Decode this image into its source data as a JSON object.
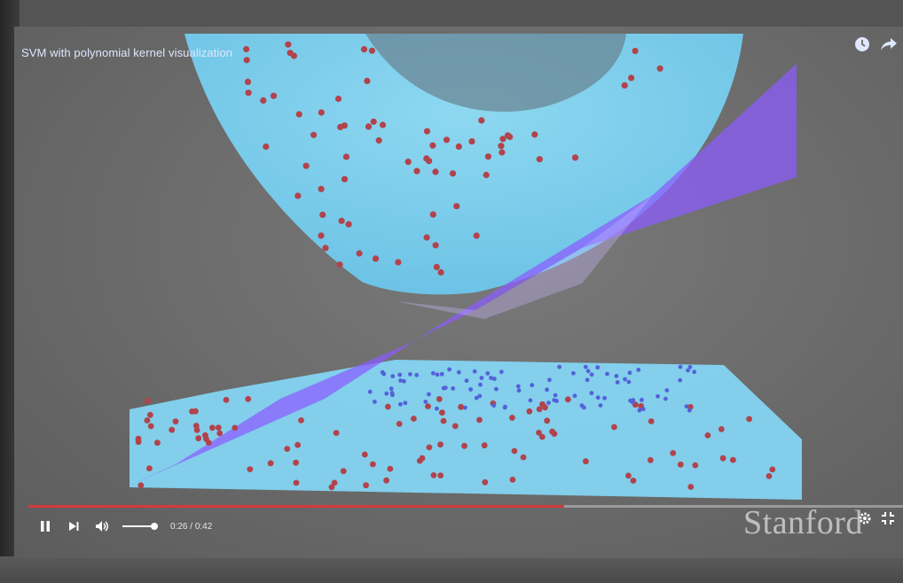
{
  "player": {
    "title": "SVM with polynomial kernel visualization",
    "current_time": "0:26",
    "separator": " / ",
    "duration": "0:42",
    "progress_fraction": 0.613,
    "volume_fraction": 0.9
  },
  "icons": {
    "watch_later": "clock-icon",
    "share": "share-arrow-icon",
    "play_pause": "pause-icon",
    "next": "next-icon",
    "volume": "speaker-icon",
    "settings": "gear-icon",
    "exit_fullscreen": "exit-fullscreen-icon"
  },
  "colors": {
    "surface_cyan": "#7fd3f2",
    "plane_purple": "#8c5cff",
    "red_points": "#b2434c",
    "blue_points": "#5461d9",
    "progress_red": "#d43b3b"
  },
  "watermark": "Stanford"
}
